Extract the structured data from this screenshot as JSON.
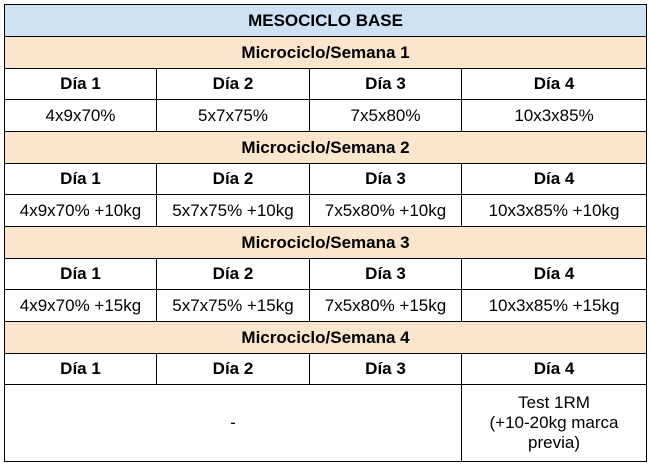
{
  "title": "MESOCICLO BASE",
  "weeks": [
    {
      "label": "Microciclo/Semana 1",
      "days": [
        "Día 1",
        "Día 2",
        "Día 3",
        "Día 4"
      ],
      "values": [
        "4x9x70%",
        "5x7x75%",
        "7x5x80%",
        "10x3x85%"
      ]
    },
    {
      "label": "Microciclo/Semana 2",
      "days": [
        "Día 1",
        "Día 2",
        "Día 3",
        "Día 4"
      ],
      "values": [
        "4x9x70% +10kg",
        "5x7x75% +10kg",
        "7x5x80% +10kg",
        "10x3x85% +10kg"
      ]
    },
    {
      "label": "Microciclo/Semana 3",
      "days": [
        "Día 1",
        "Día 2",
        "Día 3",
        "Día 4"
      ],
      "values": [
        "4x9x70% +15kg",
        "5x7x75% +15kg",
        "7x5x80% +15kg",
        "10x3x85% +15kg"
      ]
    },
    {
      "label": "Microciclo/Semana 4",
      "days": [
        "Día 1",
        "Día 2",
        "Día 3",
        "Día 4"
      ],
      "merged_value": "-",
      "test_value": "Test 1RM\n(+10-20kg marca\nprevia)"
    }
  ],
  "colors": {
    "title_bg": "#cfe2f3",
    "week_bg": "#fce5cd",
    "border": "#000000"
  }
}
